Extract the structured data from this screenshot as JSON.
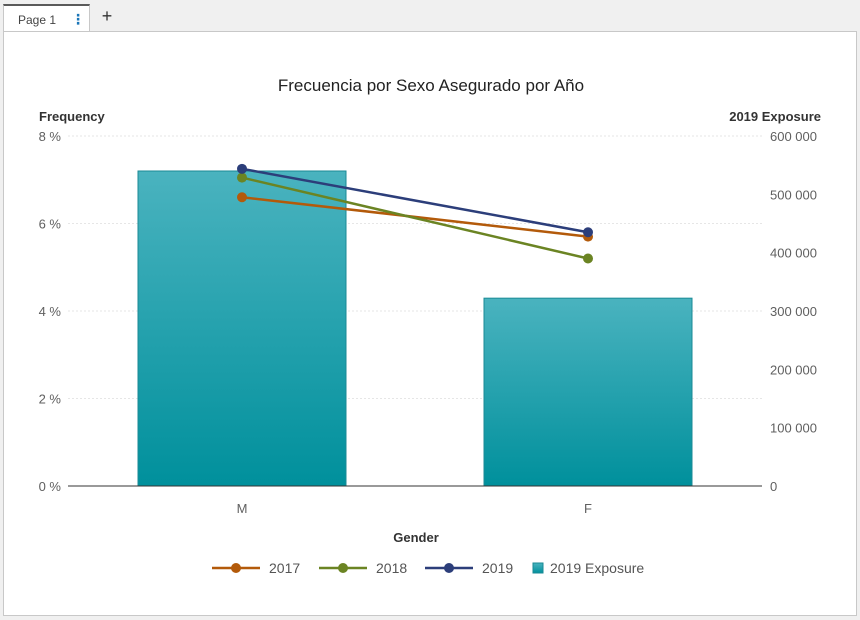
{
  "tabs": [
    {
      "label": "Page 1"
    }
  ],
  "tab_menu_icon": "more-vertical-icon",
  "add_tab_icon": "plus-icon",
  "colors": {
    "bar_top": "#4ab3bf",
    "bar_bottom": "#00909c",
    "bar_stroke": "#1a8a95",
    "s2017": "#b35a0a",
    "s2018": "#6b8423",
    "s2019": "#2c3e7a"
  },
  "chart_data": {
    "type": "bar",
    "title": "Frecuencia por Sexo Asegurado por Año",
    "xlabel": "Gender",
    "ylabel": "Frequency",
    "y2label": "2019 Exposure",
    "categories": [
      "M",
      "F"
    ],
    "ylim": [
      0,
      8
    ],
    "y2lim": [
      0,
      600000
    ],
    "yticks": [
      "0 %",
      "2 %",
      "4 %",
      "6 %",
      "8 %"
    ],
    "y2ticks": [
      "0",
      "100 000",
      "200 000",
      "300 000",
      "400 000",
      "500 000",
      "600 000"
    ],
    "grid": true,
    "legend_position": "bottom",
    "bars": {
      "name": "2019 Exposure",
      "values": [
        540000,
        322000
      ]
    },
    "series": [
      {
        "name": "2017",
        "values": [
          6.6,
          5.7
        ]
      },
      {
        "name": "2018",
        "values": [
          7.05,
          5.2
        ]
      },
      {
        "name": "2019",
        "values": [
          7.25,
          5.8
        ]
      }
    ]
  }
}
